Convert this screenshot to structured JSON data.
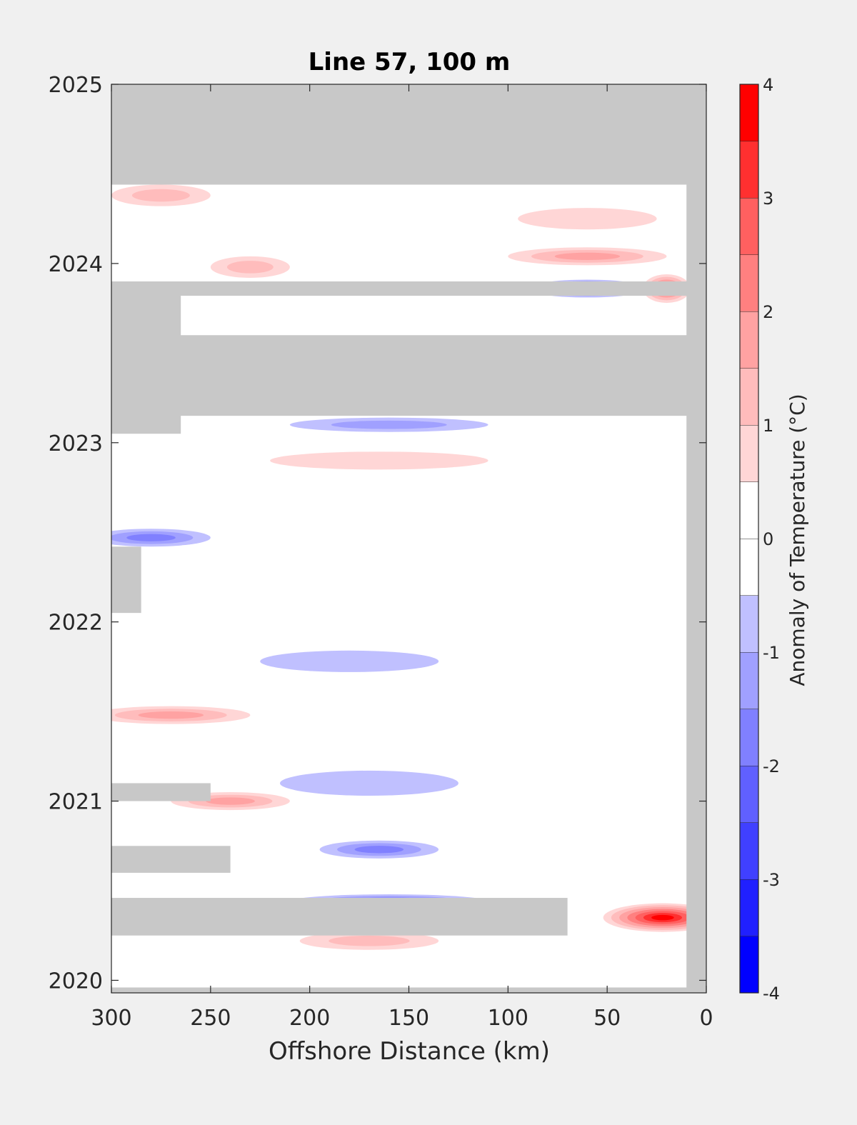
{
  "chart_data": {
    "type": "heatmap",
    "title": "Line 57, 100 m",
    "xlabel": "Offshore Distance (km)",
    "ylabel": "",
    "xlim": [
      300,
      0
    ],
    "ylim": [
      2019.93,
      2025
    ],
    "x_ticks": [
      300,
      250,
      200,
      150,
      100,
      50,
      0
    ],
    "x_tick_labels": [
      "300",
      "250",
      "200",
      "150",
      "100",
      "50",
      "0"
    ],
    "y_ticks": [
      2020,
      2021,
      2022,
      2023,
      2024,
      2025
    ],
    "y_tick_labels": [
      "2020",
      "2021",
      "2022",
      "2023",
      "2024",
      "2025"
    ],
    "grid": false,
    "colorbar": {
      "label": "Anomaly of Temperature (°C)",
      "min": -4,
      "max": 4,
      "ticks": [
        -4,
        -3,
        -2,
        -1,
        0,
        1,
        2,
        3,
        4
      ],
      "tick_labels": [
        "-4",
        "-3",
        "-2",
        "-1",
        "0",
        "1",
        "2",
        "3",
        "4"
      ],
      "levels": [
        {
          "from": -4.0,
          "to": -3.5,
          "color": "#0000ff"
        },
        {
          "from": -3.5,
          "to": -3.0,
          "color": "#2020ff"
        },
        {
          "from": -3.0,
          "to": -2.5,
          "color": "#4040ff"
        },
        {
          "from": -2.5,
          "to": -2.0,
          "color": "#6060ff"
        },
        {
          "from": -2.0,
          "to": -1.5,
          "color": "#8080ff"
        },
        {
          "from": -1.5,
          "to": -1.0,
          "color": "#a0a0ff"
        },
        {
          "from": -1.0,
          "to": -0.5,
          "color": "#c0c0ff"
        },
        {
          "from": -0.5,
          "to": 0.0,
          "color": "#ffffff"
        },
        {
          "from": 0.0,
          "to": 0.5,
          "color": "#ffffff"
        },
        {
          "from": 0.5,
          "to": 1.0,
          "color": "#ffd6d6"
        },
        {
          "from": 1.0,
          "to": 1.5,
          "color": "#ffbcbc"
        },
        {
          "from": 1.5,
          "to": 2.0,
          "color": "#ffa2a2"
        },
        {
          "from": 2.0,
          "to": 2.5,
          "color": "#ff8080"
        },
        {
          "from": 2.5,
          "to": 3.0,
          "color": "#ff6060"
        },
        {
          "from": 3.0,
          "to": 3.5,
          "color": "#ff3030"
        },
        {
          "from": 3.5,
          "to": 4.0,
          "color": "#ff0000"
        }
      ]
    },
    "no_data_color": "#c8c8c8",
    "no_data_regions": [
      {
        "x": [
          300,
          0
        ],
        "y": [
          2024.44,
          2025.0
        ]
      },
      {
        "x": [
          300,
          0
        ],
        "y": [
          2023.15,
          2023.6
        ]
      },
      {
        "x": [
          300,
          0
        ],
        "y": [
          2023.82,
          2023.9
        ]
      },
      {
        "x": [
          300,
          265
        ],
        "y": [
          2023.05,
          2023.9
        ]
      },
      {
        "x": [
          10,
          0
        ],
        "y": [
          2019.93,
          2025.0
        ]
      },
      {
        "x": [
          300,
          285
        ],
        "y": [
          2022.05,
          2022.42
        ]
      },
      {
        "x": [
          300,
          250
        ],
        "y": [
          2021.0,
          2021.1
        ]
      },
      {
        "x": [
          300,
          240
        ],
        "y": [
          2020.6,
          2020.75
        ]
      },
      {
        "x": [
          300,
          70
        ],
        "y": [
          2020.25,
          2020.46
        ]
      },
      {
        "x": [
          300,
          0
        ],
        "y": [
          2019.93,
          2019.96
        ]
      }
    ],
    "anomaly_features": [
      {
        "x": 275,
        "y": 2024.38,
        "rx": 25,
        "ry": 0.06,
        "value": 1.2
      },
      {
        "x": 60,
        "y": 2024.25,
        "rx": 35,
        "ry": 0.06,
        "value": 0.8
      },
      {
        "x": 60,
        "y": 2024.04,
        "rx": 40,
        "ry": 0.05,
        "value": 1.6
      },
      {
        "x": 230,
        "y": 2023.98,
        "rx": 20,
        "ry": 0.06,
        "value": 1.5
      },
      {
        "x": 60,
        "y": 2023.86,
        "rx": 30,
        "ry": 0.05,
        "value": -3.5
      },
      {
        "x": 20,
        "y": 2023.86,
        "rx": 12,
        "ry": 0.08,
        "value": 2.8
      },
      {
        "x": 160,
        "y": 2023.1,
        "rx": 50,
        "ry": 0.04,
        "value": -1.5
      },
      {
        "x": 165,
        "y": 2022.9,
        "rx": 55,
        "ry": 0.05,
        "value": 0.8
      },
      {
        "x": 280,
        "y": 2022.47,
        "rx": 30,
        "ry": 0.05,
        "value": -2.0
      },
      {
        "x": 180,
        "y": 2021.78,
        "rx": 45,
        "ry": 0.06,
        "value": -0.8
      },
      {
        "x": 270,
        "y": 2021.48,
        "rx": 40,
        "ry": 0.05,
        "value": 1.6
      },
      {
        "x": 170,
        "y": 2021.1,
        "rx": 45,
        "ry": 0.07,
        "value": -0.8
      },
      {
        "x": 240,
        "y": 2021.0,
        "rx": 30,
        "ry": 0.05,
        "value": 1.7
      },
      {
        "x": 165,
        "y": 2020.73,
        "rx": 30,
        "ry": 0.05,
        "value": -1.8
      },
      {
        "x": 160,
        "y": 2020.44,
        "rx": 50,
        "ry": 0.04,
        "value": -2.2
      },
      {
        "x": 22,
        "y": 2020.35,
        "rx": 30,
        "ry": 0.08,
        "value": 3.8
      },
      {
        "x": 170,
        "y": 2020.22,
        "rx": 35,
        "ry": 0.05,
        "value": 1.1
      }
    ]
  }
}
